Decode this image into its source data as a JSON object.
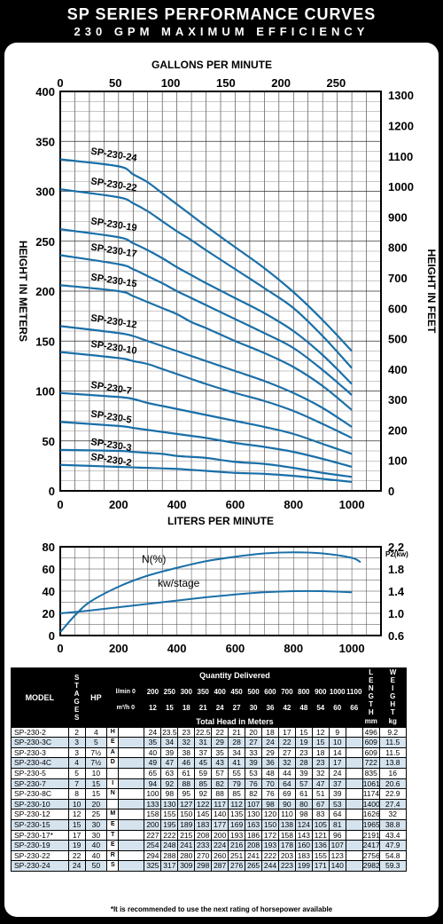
{
  "header": {
    "title": "SP SERIES PERFORMANCE CURVES",
    "subtitle": "230 GPM MAXIMUM EFFICIENCY"
  },
  "colors": {
    "curve": "#1a6fa8",
    "row_alt": "#d5e3ee",
    "background": "#000000"
  },
  "chart_data": [
    {
      "type": "line",
      "title": "",
      "x_top_label": "GALLONS PER MINUTE",
      "x_top_ticks": [
        "0",
        "50",
        "100",
        "150",
        "200",
        "250"
      ],
      "xlabel": "LITERS PER MINUTE",
      "x_ticks": [
        "0",
        "200",
        "400",
        "600",
        "800",
        "1000"
      ],
      "ylabel": "HEIGHT IN METERS",
      "y_ticks": [
        "0",
        "50",
        "100",
        "150",
        "200",
        "250",
        "300",
        "350",
        "400"
      ],
      "y_right_label": "HEIGHT IN FEET",
      "y_right_ticks": [
        "0",
        "100",
        "200",
        "300",
        "400",
        "500",
        "600",
        "700",
        "800",
        "900",
        "1000",
        "1100",
        "1200",
        "1300"
      ],
      "xlim": [
        0,
        1100
      ],
      "ylim": [
        0,
        400
      ],
      "grid": true,
      "series": [
        {
          "name": "SP-230-24",
          "x": [
            0,
            200,
            250,
            300,
            350,
            400,
            450,
            500,
            600,
            700,
            800,
            900,
            1000
          ],
          "y": [
            332,
            325,
            317,
            309,
            298,
            287,
            276,
            265,
            244,
            223,
            199,
            171,
            140
          ]
        },
        {
          "name": "SP-230-22",
          "x": [
            0,
            200,
            250,
            300,
            350,
            400,
            450,
            500,
            600,
            700,
            800,
            900,
            1000
          ],
          "y": [
            302,
            294,
            288,
            280,
            270,
            260,
            251,
            241,
            222,
            203,
            183,
            155,
            123
          ]
        },
        {
          "name": "SP-230-19",
          "x": [
            0,
            200,
            250,
            300,
            350,
            400,
            450,
            500,
            600,
            700,
            800,
            900,
            1000
          ],
          "y": [
            262,
            254,
            248,
            241,
            233,
            224,
            216,
            208,
            193,
            178,
            160,
            136,
            107
          ]
        },
        {
          "name": "SP-230-17",
          "x": [
            0,
            200,
            250,
            300,
            350,
            400,
            450,
            500,
            600,
            700,
            800,
            900,
            1000
          ],
          "y": [
            236,
            227,
            222,
            215,
            208,
            200,
            193,
            186,
            172,
            158,
            143,
            121,
            96
          ]
        },
        {
          "name": "SP-230-15",
          "x": [
            0,
            200,
            250,
            300,
            350,
            400,
            450,
            500,
            600,
            700,
            800,
            900,
            1000
          ],
          "y": [
            206,
            200,
            195,
            189,
            183,
            177,
            169,
            163,
            150,
            138,
            124,
            105,
            81
          ]
        },
        {
          "name": "SP-230-12",
          "x": [
            0,
            200,
            250,
            300,
            350,
            400,
            450,
            500,
            600,
            700,
            800,
            900,
            1000
          ],
          "y": [
            165,
            158,
            155,
            150,
            145,
            140,
            135,
            130,
            120,
            110,
            98,
            83,
            64
          ]
        },
        {
          "name": "SP-230-10",
          "x": [
            0,
            200,
            250,
            300,
            350,
            400,
            450,
            500,
            600,
            700,
            800,
            900,
            1000
          ],
          "y": [
            139,
            133,
            130,
            127,
            122,
            117,
            112,
            107,
            98,
            90,
            80,
            67,
            53
          ]
        },
        {
          "name": "SP-230-7",
          "x": [
            0,
            200,
            250,
            300,
            350,
            400,
            450,
            500,
            600,
            700,
            800,
            900,
            1000
          ],
          "y": [
            98,
            94,
            92,
            88,
            85,
            82,
            79,
            76,
            70,
            64,
            57,
            47,
            37
          ]
        },
        {
          "name": "SP-230-5",
          "x": [
            0,
            200,
            250,
            300,
            350,
            400,
            450,
            500,
            600,
            700,
            800,
            900,
            1000
          ],
          "y": [
            69,
            65,
            63,
            61,
            59,
            57,
            55,
            53,
            48,
            44,
            39,
            32,
            24
          ]
        },
        {
          "name": "SP-230-3",
          "x": [
            0,
            200,
            250,
            300,
            350,
            400,
            450,
            500,
            600,
            700,
            800,
            900,
            1000
          ],
          "y": [
            41,
            40,
            39,
            38,
            37,
            35,
            34,
            33,
            29,
            27,
            23,
            18,
            14
          ]
        },
        {
          "name": "SP-230-2",
          "x": [
            0,
            200,
            250,
            300,
            350,
            400,
            450,
            500,
            600,
            700,
            800,
            900,
            1000
          ],
          "y": [
            26,
            24,
            23.5,
            23,
            22.5,
            22,
            21,
            20,
            18,
            17,
            15,
            12,
            9
          ]
        }
      ]
    },
    {
      "type": "line",
      "x_ticks": [
        "0",
        "200",
        "400",
        "600",
        "800",
        "1000"
      ],
      "y_ticks": [
        "0",
        "20",
        "40",
        "60",
        "80"
      ],
      "y_right_label": "P2(kw)",
      "y_right_ticks": [
        "0.6",
        "1.0",
        "1.4",
        "1.8",
        "2.2"
      ],
      "xlim": [
        0,
        1100
      ],
      "ylim": [
        0,
        80
      ],
      "grid": true,
      "annotations": [
        "N(%)",
        "kw/stage"
      ],
      "series": [
        {
          "name": "N(%)",
          "x": [
            0,
            50,
            100,
            200,
            300,
            400,
            500,
            600,
            700,
            800,
            900,
            1000,
            1030
          ],
          "y": [
            3,
            18,
            30,
            44,
            54,
            61,
            67,
            71,
            74,
            75,
            74,
            70,
            66
          ]
        },
        {
          "name": "kw/stage",
          "axis": "right",
          "x": [
            0,
            100,
            200,
            300,
            400,
            500,
            600,
            700,
            800,
            900,
            1000
          ],
          "y": [
            1.0,
            1.05,
            1.11,
            1.17,
            1.23,
            1.29,
            1.34,
            1.38,
            1.4,
            1.4,
            1.38
          ]
        }
      ]
    }
  ],
  "table": {
    "header": {
      "model": "MODEL",
      "stages": "STAGES",
      "hp": "HP",
      "quantity": "Quantity Delivered",
      "lmin_label": "l/min 0",
      "m3h_label": "m³/h 0",
      "lmin": [
        "200",
        "250",
        "300",
        "350",
        "400",
        "450",
        "500",
        "600",
        "700",
        "800",
        "900",
        "1000",
        "1100"
      ],
      "m3h": [
        "12",
        "15",
        "18",
        "21",
        "24",
        "27",
        "30",
        "36",
        "42",
        "48",
        "54",
        "60",
        "66"
      ],
      "total_head": "Total Head in Meters",
      "length": "LENGTH",
      "length_unit": "mm",
      "weight": "WEIGHT",
      "weight_unit": "kg",
      "head_in_meters": [
        "H",
        "E",
        "A",
        "D",
        "",
        "I",
        "N",
        "",
        "M",
        "E",
        "T",
        "E",
        "R",
        "S"
      ]
    },
    "rows": [
      {
        "model": "SP-230-2",
        "stages": "2",
        "hp": "4",
        "heads": [
          "24",
          "23.5",
          "23",
          "22.5",
          "22",
          "21",
          "20",
          "18",
          "17",
          "15",
          "12",
          "9",
          ""
        ],
        "length": "496",
        "weight": "9.2"
      },
      {
        "model": "SP-230-3C",
        "stages": "3",
        "hp": "5",
        "heads": [
          "35",
          "34",
          "32",
          "31",
          "29",
          "28",
          "27",
          "24",
          "22",
          "19",
          "15",
          "10",
          ""
        ],
        "length": "609",
        "weight": "11.5"
      },
      {
        "model": "SP-230-3",
        "stages": "3",
        "hp": "7½",
        "heads": [
          "40",
          "39",
          "38",
          "37",
          "35",
          "34",
          "33",
          "29",
          "27",
          "23",
          "18",
          "14",
          ""
        ],
        "length": "609",
        "weight": "11.5"
      },
      {
        "model": "SP-230-4C",
        "stages": "4",
        "hp": "7½",
        "heads": [
          "49",
          "47",
          "46",
          "45",
          "43",
          "41",
          "39",
          "36",
          "32",
          "28",
          "23",
          "17",
          ""
        ],
        "length": "722",
        "weight": "13.8"
      },
      {
        "model": "SP-230-5",
        "stages": "5",
        "hp": "10",
        "heads": [
          "65",
          "63",
          "61",
          "59",
          "57",
          "55",
          "53",
          "48",
          "44",
          "39",
          "32",
          "24",
          ""
        ],
        "length": "835",
        "weight": "16"
      },
      {
        "model": "SP-230-7",
        "stages": "7",
        "hp": "15",
        "heads": [
          "94",
          "92",
          "88",
          "85",
          "82",
          "79",
          "76",
          "70",
          "64",
          "57",
          "47",
          "37",
          ""
        ],
        "length": "1061",
        "weight": "20.6"
      },
      {
        "model": "SP-230-8C",
        "stages": "8",
        "hp": "15",
        "heads": [
          "100",
          "98",
          "95",
          "92",
          "88",
          "85",
          "82",
          "76",
          "69",
          "61",
          "51",
          "39",
          ""
        ],
        "length": "1174",
        "weight": "22.9"
      },
      {
        "model": "SP-230-10",
        "stages": "10",
        "hp": "20",
        "heads": [
          "133",
          "130",
          "127",
          "122",
          "117",
          "112",
          "107",
          "98",
          "90",
          "80",
          "67",
          "53",
          ""
        ],
        "length": "1400",
        "weight": "27.4"
      },
      {
        "model": "SP-230-12",
        "stages": "12",
        "hp": "25",
        "heads": [
          "158",
          "155",
          "150",
          "145",
          "140",
          "135",
          "130",
          "120",
          "110",
          "98",
          "83",
          "64",
          ""
        ],
        "length": "1626",
        "weight": "32"
      },
      {
        "model": "SP-230-15",
        "stages": "15",
        "hp": "30",
        "heads": [
          "200",
          "195",
          "189",
          "183",
          "177",
          "169",
          "163",
          "150",
          "138",
          "124",
          "105",
          "81",
          ""
        ],
        "length": "1965",
        "weight": "38.8"
      },
      {
        "model": "SP-230-17*",
        "stages": "17",
        "hp": "30",
        "heads": [
          "227",
          "222",
          "215",
          "208",
          "200",
          "193",
          "186",
          "172",
          "158",
          "143",
          "121",
          "96",
          ""
        ],
        "length": "2191",
        "weight": "43.4"
      },
      {
        "model": "SP-230-19",
        "stages": "19",
        "hp": "40",
        "heads": [
          "254",
          "248",
          "241",
          "233",
          "224",
          "216",
          "208",
          "193",
          "178",
          "160",
          "136",
          "107",
          ""
        ],
        "length": "2417",
        "weight": "47.9"
      },
      {
        "model": "SP-230-22",
        "stages": "22",
        "hp": "40",
        "heads": [
          "294",
          "288",
          "280",
          "270",
          "260",
          "251",
          "241",
          "222",
          "203",
          "183",
          "155",
          "123",
          ""
        ],
        "length": "2756",
        "weight": "54.8"
      },
      {
        "model": "SP-230-24",
        "stages": "24",
        "hp": "50",
        "heads": [
          "325",
          "317",
          "309",
          "298",
          "287",
          "276",
          "265",
          "244",
          "223",
          "199",
          "171",
          "140",
          ""
        ],
        "length": "2982",
        "weight": "59.3"
      }
    ],
    "footnote": "*It is recommended to use the next rating of horsepower available"
  }
}
